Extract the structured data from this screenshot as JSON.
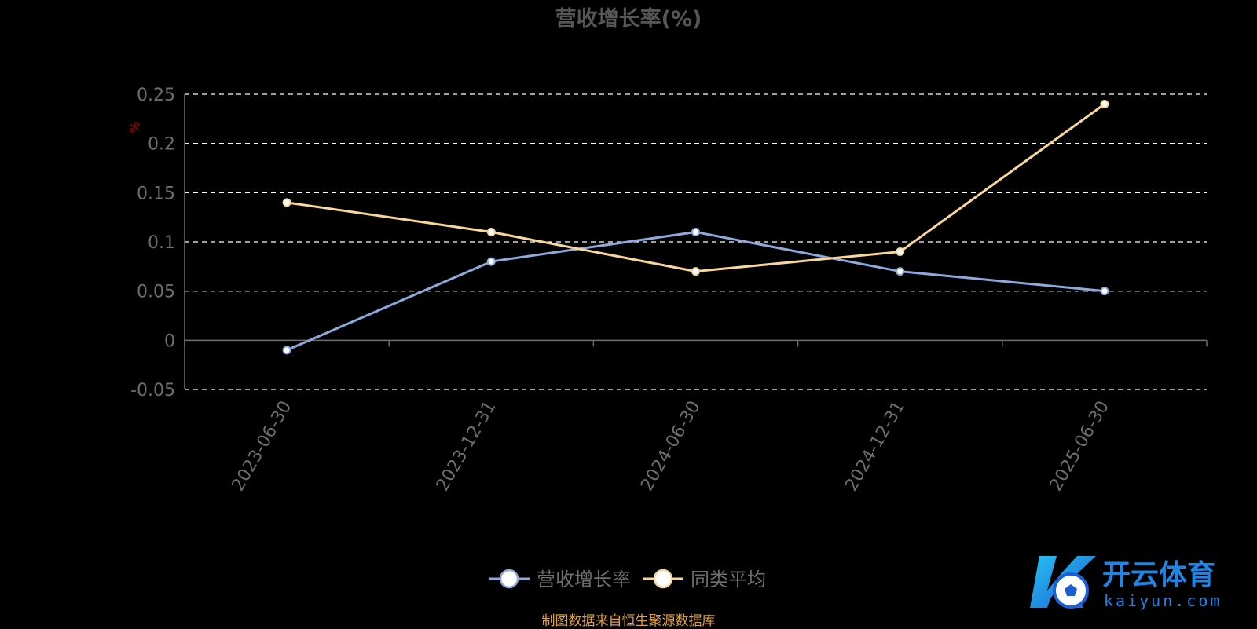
{
  "source_note": "制图数据来自恒生聚源数据库",
  "watermark": {
    "text": "开云体育",
    "subtext": "kaiyun.com"
  },
  "chart_data": {
    "type": "line",
    "title": "营收增长率(%)",
    "ylabel": "%",
    "xlabel": "",
    "categories": [
      "2023-06-30",
      "2023-12-31",
      "2024-06-30",
      "2024-12-31",
      "2025-06-30"
    ],
    "series": [
      {
        "name": "营收增长率",
        "values": [
          -0.01,
          0.08,
          0.11,
          0.07,
          0.05
        ],
        "color": "#8eaadc"
      },
      {
        "name": "同类平均",
        "values": [
          0.14,
          0.11,
          0.07,
          0.09,
          0.24
        ],
        "color": "#f9d79b"
      }
    ],
    "ylim": [
      -0.05,
      0.25
    ],
    "yticks": [
      -0.05,
      0,
      0.05,
      0.1,
      0.15,
      0.2,
      0.25
    ],
    "ytick_labels": [
      "-0.05",
      "0",
      "0.05",
      "0.1",
      "0.15",
      "0.2",
      "0.25"
    ],
    "grid": true,
    "legend": "bottom-center",
    "colors": {
      "axis": "#6e6e6e",
      "text": "#6e6e6e",
      "title": "#555555",
      "ylabel": "#c00000",
      "grid": "#ffffff"
    }
  }
}
